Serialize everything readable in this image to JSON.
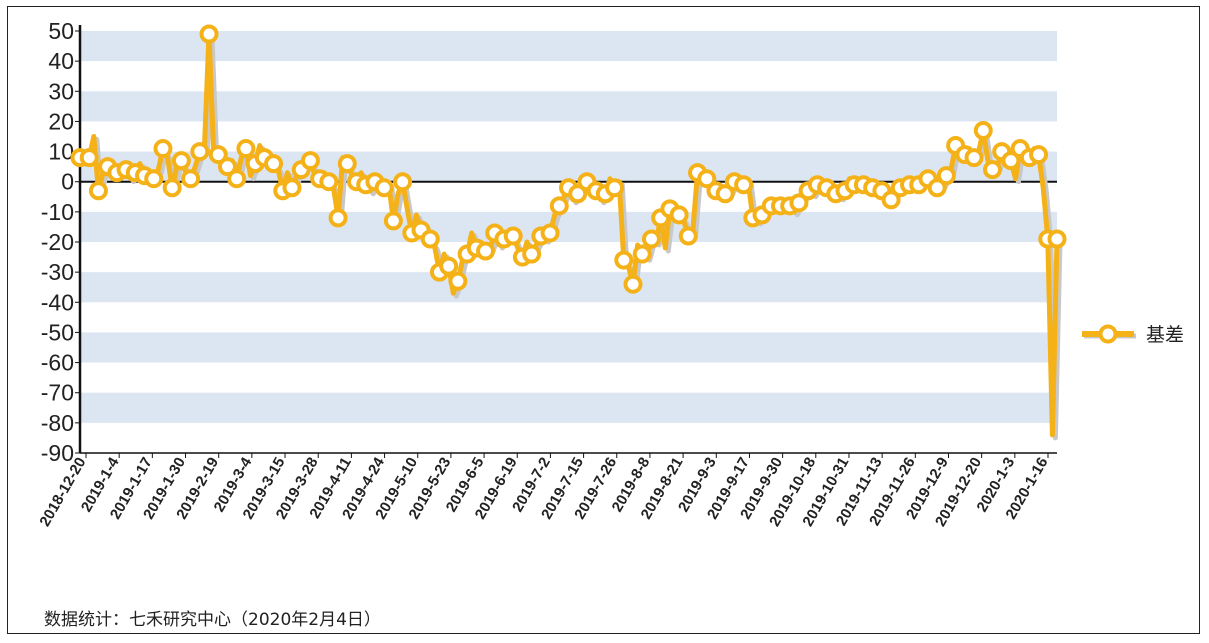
{
  "source_note": "数据统计：七禾研究中心（2020年2月4日）",
  "chart_data": {
    "type": "line",
    "title": "",
    "xlabel": "",
    "ylabel": "",
    "ylim": [
      -90,
      50
    ],
    "yticks": [
      50,
      40,
      30,
      20,
      10,
      0,
      -10,
      -20,
      -30,
      -40,
      -50,
      -60,
      -70,
      -80,
      -90
    ],
    "grid": "horizontal alternating bands",
    "legend_position": "right",
    "colors": {
      "series": "#f5b118",
      "marker_fill": "#ffffff",
      "band": "#dce6f2",
      "zero_line": "#111111",
      "axis": "#111111"
    },
    "xtick_labels": [
      "2018-12-20",
      "2019-1-4",
      "2019-1-17",
      "2019-1-30",
      "2019-2-19",
      "2019-3-4",
      "2019-3-15",
      "2019-3-28",
      "2019-4-11",
      "2019-4-24",
      "2019-5-10",
      "2019-5-23",
      "2019-6-5",
      "2019-6-19",
      "2019-7-2",
      "2019-7-15",
      "2019-7-26",
      "2019-8-8",
      "2019-8-21",
      "2019-9-3",
      "2019-9-17",
      "2019-9-30",
      "2019-10-18",
      "2019-10-31",
      "2019-11-13",
      "2019-11-26",
      "2019-12-9",
      "2019-12-20",
      "2020-1-3",
      "2020-1-16"
    ],
    "series": [
      {
        "name": "基差",
        "values": [
          8,
          7,
          8,
          15,
          -3,
          3,
          5,
          2,
          3,
          5,
          4,
          1,
          3,
          6,
          2,
          3,
          1,
          4,
          11,
          8,
          -2,
          5,
          7,
          3,
          1,
          5,
          10,
          11,
          49,
          10,
          9,
          7,
          5,
          7,
          1,
          8,
          11,
          2,
          6,
          12,
          8,
          6,
          6,
          4,
          -3,
          3,
          -2,
          2,
          4,
          5,
          7,
          2,
          1,
          3,
          0,
          -2,
          -12,
          8,
          6,
          2,
          0,
          3,
          -1,
          -3,
          0,
          0,
          -2,
          -1,
          -13,
          -4,
          0,
          -9,
          -17,
          -11,
          -16,
          -15,
          -19,
          -22,
          -30,
          -24,
          -28,
          -37,
          -33,
          -26,
          -24,
          -17,
          -22,
          -20,
          -23,
          -22,
          -17,
          -21,
          -19,
          -17,
          -18,
          -22,
          -25,
          -20,
          -24,
          -21,
          -18,
          -19,
          -17,
          -11,
          -8,
          -5,
          -2,
          -6,
          -4,
          0,
          0,
          -1,
          -3,
          -6,
          -4,
          1,
          -2,
          0,
          -26,
          -28,
          -34,
          -21,
          -24,
          -25,
          -19,
          -20,
          -12,
          -22,
          -9,
          -12,
          -11,
          -13,
          -18,
          -16,
          3,
          2,
          1,
          -1,
          -3,
          -2,
          -4,
          -3,
          0,
          -2,
          -1,
          0,
          -12,
          -13,
          -11,
          -7,
          -8,
          -6,
          -8,
          -9,
          -8,
          -10,
          -7,
          -5,
          -3,
          -4,
          -1,
          0,
          -2,
          -3,
          -4,
          -5,
          -3,
          1,
          -1,
          -2,
          -1,
          0,
          -2,
          -4,
          -3,
          -4,
          -6,
          -3,
          -2,
          -2,
          -1,
          0,
          -1,
          0,
          1,
          0,
          -2,
          -1,
          2,
          4,
          12,
          10,
          9,
          11,
          8,
          10,
          17,
          7,
          4,
          5,
          10,
          8,
          7,
          1,
          11,
          12,
          8,
          11,
          9,
          -2,
          -19,
          -84,
          -19
        ]
      }
    ]
  },
  "legend": {
    "items": [
      {
        "label": "基差",
        "marker": "circle-line"
      }
    ]
  }
}
